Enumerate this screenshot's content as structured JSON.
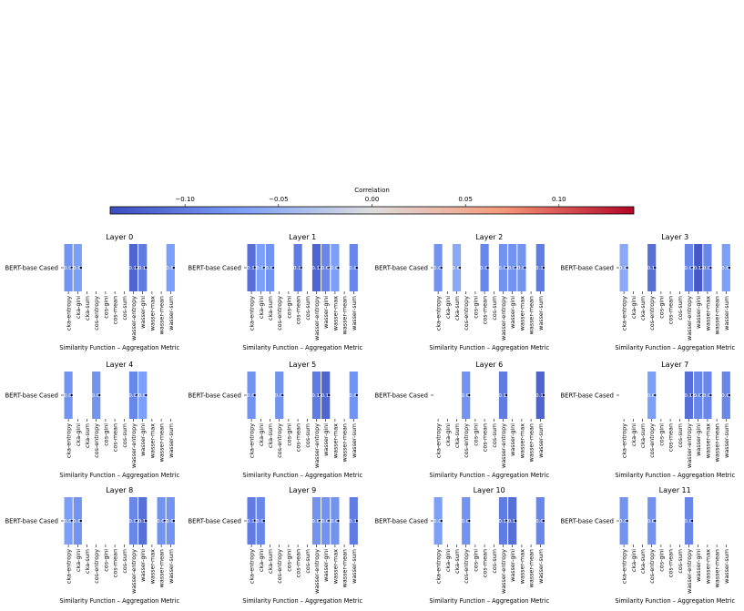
{
  "chart_data": {
    "type": "heatmap",
    "colorbar": {
      "title": "Correlation",
      "ticks": [
        "−0.10",
        "−0.05",
        "0.00",
        "0.05",
        "0.10"
      ],
      "range": [
        -0.14,
        0.14
      ],
      "colormap": "coolwarm",
      "placement": "top"
    },
    "row_label": "BERT-base Cased",
    "columns": [
      "cka-entropy",
      "cka-gini",
      "cka-sum",
      "cos-entropy",
      "cos-gini",
      "cos-mean",
      "cos-sum",
      "wasser-entropy",
      "wasser-gini",
      "wasser-max",
      "wasser-mean",
      "wasser-sum"
    ],
    "xlabel": "Similarity Function – Aggregation Metric",
    "panels": [
      {
        "title": "Layer 0",
        "values": [
          -0.08,
          -0.07,
          null,
          null,
          null,
          null,
          null,
          -0.12,
          -0.1,
          null,
          null,
          -0.07
        ]
      },
      {
        "title": "Layer 1",
        "values": [
          -0.11,
          -0.07,
          -0.08,
          null,
          null,
          -0.1,
          null,
          -0.12,
          -0.09,
          -0.07,
          null,
          -0.09
        ]
      },
      {
        "title": "Layer 2",
        "values": [
          -0.08,
          null,
          -0.06,
          null,
          null,
          -0.09,
          null,
          -0.08,
          -0.08,
          -0.08,
          null,
          -0.1
        ]
      },
      {
        "title": "Layer 3",
        "values": [
          -0.06,
          null,
          null,
          -0.11,
          null,
          null,
          null,
          -0.09,
          -0.13,
          -0.09,
          null,
          -0.07
        ]
      },
      {
        "title": "Layer 4",
        "values": [
          -0.08,
          null,
          null,
          -0.08,
          null,
          null,
          null,
          -0.09,
          -0.07,
          null,
          null,
          null
        ]
      },
      {
        "title": "Layer 5",
        "values": [
          -0.08,
          null,
          null,
          -0.08,
          null,
          null,
          null,
          -0.1,
          -0.12,
          null,
          null,
          -0.08
        ]
      },
      {
        "title": "Layer 6",
        "values": [
          null,
          null,
          null,
          -0.08,
          null,
          null,
          null,
          -0.1,
          null,
          null,
          null,
          -0.12
        ]
      },
      {
        "title": "Layer 7",
        "values": [
          null,
          null,
          null,
          -0.07,
          null,
          null,
          null,
          -0.11,
          -0.09,
          -0.09,
          null,
          -0.09
        ]
      },
      {
        "title": "Layer 8",
        "values": [
          -0.07,
          -0.08,
          null,
          null,
          null,
          null,
          null,
          -0.09,
          -0.11,
          null,
          -0.08,
          -0.08
        ]
      },
      {
        "title": "Layer 9",
        "values": [
          -0.1,
          -0.09,
          null,
          null,
          null,
          null,
          null,
          -0.08,
          -0.08,
          -0.08,
          null,
          -0.1
        ]
      },
      {
        "title": "Layer 10",
        "values": [
          -0.07,
          null,
          null,
          -0.08,
          null,
          null,
          null,
          -0.1,
          -0.11,
          null,
          null,
          -0.09
        ]
      },
      {
        "title": "Layer 11",
        "values": [
          -0.08,
          null,
          null,
          -0.08,
          null,
          null,
          null,
          -0.09,
          null,
          null,
          null,
          null
        ]
      }
    ]
  }
}
